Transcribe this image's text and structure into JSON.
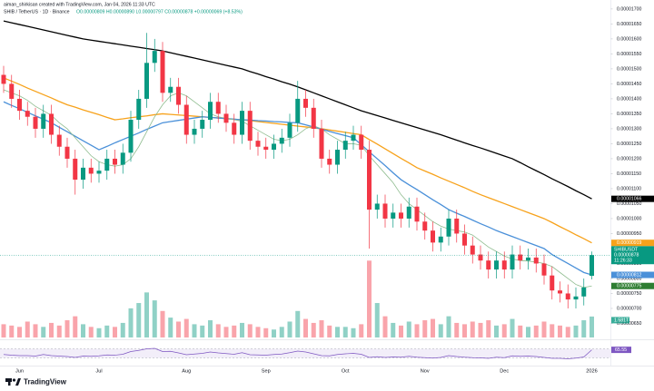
{
  "credit": "aiman_shirkisan created with TradingView.com, Jan 04, 2026 11:33 UTC",
  "footer": "TradingView",
  "chart_data": {
    "type": "candlestick",
    "title": "SHIB / TetherUS · 1D · Binance",
    "ohlc_legend": "O0.00000809 H0.00000890 L0.00000797 C0.00000878 +0.00000069 (+8.53%)",
    "categories": [
      null,
      null,
      "Jun",
      null,
      null,
      null,
      null,
      null,
      null,
      null,
      null,
      null,
      "Jul",
      null,
      null,
      null,
      null,
      null,
      null,
      null,
      null,
      null,
      null,
      "Aug",
      null,
      null,
      null,
      null,
      null,
      null,
      null,
      null,
      null,
      "Sep",
      null,
      null,
      null,
      null,
      null,
      null,
      null,
      null,
      null,
      "Oct",
      null,
      null,
      null,
      null,
      null,
      null,
      null,
      null,
      null,
      "Nov",
      null,
      null,
      null,
      null,
      null,
      null,
      null,
      null,
      null,
      "Dec",
      null,
      null,
      null,
      null,
      null,
      null,
      null,
      null,
      null,
      null,
      "2026"
    ],
    "open": [
      1.48e-05,
      1.45e-05,
      1.4e-05,
      1.36e-05,
      1.34e-05,
      1.3e-05,
      1.35e-05,
      1.28e-05,
      1.24e-05,
      1.2e-05,
      1.13e-05,
      1.17e-05,
      1.15e-05,
      1.16e-05,
      1.2e-05,
      1.18e-05,
      1.22e-05,
      1.33e-05,
      1.4e-05,
      1.52e-05,
      1.56e-05,
      1.42e-05,
      1.44e-05,
      1.38e-05,
      1.28e-05,
      1.3e-05,
      1.33e-05,
      1.39e-05,
      1.35e-05,
      1.32e-05,
      1.28e-05,
      1.36e-05,
      1.26e-05,
      1.24e-05,
      1.23e-05,
      1.25e-05,
      1.27e-05,
      1.32e-05,
      1.4e-05,
      1.37e-05,
      1.3e-05,
      1.2e-05,
      1.18e-05,
      1.23e-05,
      1.26e-05,
      1.28e-05,
      1.23e-05,
      1.03e-05,
      1.05e-05,
      1e-05,
      1.02e-05,
      1e-05,
      1.04e-05,
      9.9e-06,
      9.6e-06,
      9.2e-06,
      9.4e-06,
      1e-05,
      9.5e-06,
      9.1e-06,
      8.8e-06,
      8.6e-06,
      8.3e-06,
      8.6e-06,
      8.3e-06,
      8.8e-06,
      8.6e-06,
      8.7e-06,
      8.5e-06,
      8.1e-06,
      7.6e-06,
      7.5e-06,
      7.3e-06,
      7.4e-06,
      8.09e-06
    ],
    "high": [
      1.51e-05,
      1.48e-05,
      1.43e-05,
      1.39e-05,
      1.37e-05,
      1.38e-05,
      1.38e-05,
      1.31e-05,
      1.27e-05,
      1.23e-05,
      1.2e-05,
      1.2e-05,
      1.19e-05,
      1.23e-05,
      1.23e-05,
      1.25e-05,
      1.36e-05,
      1.43e-05,
      1.62e-05,
      1.6e-05,
      1.59e-05,
      1.47e-05,
      1.47e-05,
      1.41e-05,
      1.33e-05,
      1.36e-05,
      1.42e-05,
      1.42e-05,
      1.38e-05,
      1.35e-05,
      1.39e-05,
      1.39e-05,
      1.29e-05,
      1.27e-05,
      1.28e-05,
      1.3e-05,
      1.35e-05,
      1.46e-05,
      1.43e-05,
      1.4e-05,
      1.33e-05,
      1.23e-05,
      1.26e-05,
      1.29e-05,
      1.31e-05,
      1.31e-05,
      1.26e-05,
      1.08e-05,
      1.08e-05,
      1.05e-05,
      1.05e-05,
      1.07e-05,
      1.07e-05,
      1.02e-05,
      9.9e-06,
      9.7e-06,
      1.03e-05,
      1.03e-05,
      9.8e-06,
      9.4e-06,
      9.1e-06,
      8.9e-06,
      8.9e-06,
      8.9e-06,
      9.1e-06,
      9.1e-06,
      9e-06,
      9e-06,
      8.8e-06,
      8.4e-06,
      7.9e-06,
      7.8e-06,
      7.7e-06,
      8e-06,
      8.9e-06
    ],
    "low": [
      1.42e-05,
      1.37e-05,
      1.33e-05,
      1.31e-05,
      1.27e-05,
      1.27e-05,
      1.25e-05,
      1.21e-05,
      1.17e-05,
      1.08e-05,
      1.1e-05,
      1.12e-05,
      1.12e-05,
      1.13e-05,
      1.15e-05,
      1.15e-05,
      1.19e-05,
      1.3e-05,
      1.37e-05,
      1.49e-05,
      1.39e-05,
      1.39e-05,
      1.35e-05,
      1.25e-05,
      1.25e-05,
      1.27e-05,
      1.3e-05,
      1.32e-05,
      1.29e-05,
      1.25e-05,
      1.25e-05,
      1.23e-05,
      1.21e-05,
      1.2e-05,
      1.2e-05,
      1.22e-05,
      1.24e-05,
      1.29e-05,
      1.34e-05,
      1.27e-05,
      1.17e-05,
      1.15e-05,
      1.15e-05,
      1.2e-05,
      1.23e-05,
      1.2e-05,
      9e-06,
      1e-05,
      9.7e-06,
      9.7e-06,
      9.7e-06,
      9.7e-06,
      9.6e-06,
      9.3e-06,
      8.9e-06,
      8.9e-06,
      9.1e-06,
      9.2e-06,
      8.8e-06,
      8.5e-06,
      8.3e-06,
      8e-06,
      8e-06,
      8e-06,
      8e-06,
      8.3e-06,
      8.3e-06,
      8.2e-06,
      7.8e-06,
      7.3e-06,
      7.2e-06,
      7e-06,
      7e-06,
      7.1e-06,
      7.97e-06
    ],
    "close": [
      1.45e-05,
      1.4e-05,
      1.36e-05,
      1.34e-05,
      1.3e-05,
      1.35e-05,
      1.28e-05,
      1.24e-05,
      1.2e-05,
      1.13e-05,
      1.17e-05,
      1.15e-05,
      1.16e-05,
      1.2e-05,
      1.18e-05,
      1.22e-05,
      1.33e-05,
      1.4e-05,
      1.52e-05,
      1.56e-05,
      1.42e-05,
      1.44e-05,
      1.38e-05,
      1.28e-05,
      1.3e-05,
      1.33e-05,
      1.39e-05,
      1.35e-05,
      1.32e-05,
      1.28e-05,
      1.36e-05,
      1.26e-05,
      1.24e-05,
      1.23e-05,
      1.25e-05,
      1.27e-05,
      1.32e-05,
      1.4e-05,
      1.37e-05,
      1.3e-05,
      1.2e-05,
      1.18e-05,
      1.23e-05,
      1.26e-05,
      1.28e-05,
      1.23e-05,
      1.03e-05,
      1.05e-05,
      1e-05,
      1.02e-05,
      1e-05,
      1.04e-05,
      9.9e-06,
      9.6e-06,
      9.2e-06,
      9.4e-06,
      1e-05,
      9.5e-06,
      9.1e-06,
      8.8e-06,
      8.6e-06,
      8.3e-06,
      8.6e-06,
      8.3e-06,
      8.8e-06,
      8.6e-06,
      8.7e-06,
      8.5e-06,
      8.1e-06,
      7.6e-06,
      7.5e-06,
      7.3e-06,
      7.4e-06,
      7.7e-06,
      8.78e-06
    ],
    "up_color": "#089981",
    "down_color": "#f23645",
    "ylim": [
      6.03e-06,
      1.73e-05
    ],
    "yticks": [
      {
        "value": 1.7e-05,
        "label": "0.00001700"
      },
      {
        "value": 1.65e-05,
        "label": "0.00001650"
      },
      {
        "value": 1.6e-05,
        "label": "0.00001600"
      },
      {
        "value": 1.55e-05,
        "label": "0.00001550"
      },
      {
        "value": 1.5e-05,
        "label": "0.00001500"
      },
      {
        "value": 1.45e-05,
        "label": "0.00001450"
      },
      {
        "value": 1.4e-05,
        "label": "0.00001400"
      },
      {
        "value": 1.35e-05,
        "label": "0.00001350"
      },
      {
        "value": 1.3e-05,
        "label": "0.00001300"
      },
      {
        "value": 1.25e-05,
        "label": "0.00001250"
      },
      {
        "value": 1.2e-05,
        "label": "0.00001200"
      },
      {
        "value": 1.15e-05,
        "label": "0.00001150"
      },
      {
        "value": 1.1e-05,
        "label": "0.00001100"
      },
      {
        "value": 1.05e-05,
        "label": "0.00001050"
      },
      {
        "value": 1e-05,
        "label": "0.00001000"
      },
      {
        "value": 9.5e-06,
        "label": "0.00000950"
      },
      {
        "value": 9e-06,
        "label": "0.00000900"
      },
      {
        "value": 8.5e-06,
        "label": "0.00000850"
      },
      {
        "value": 8e-06,
        "label": "0.00000800"
      },
      {
        "value": 7.5e-06,
        "label": "0.00000750"
      },
      {
        "value": 7e-06,
        "label": "0.00000700"
      },
      {
        "value": 6.5e-06,
        "label": "0.00000650"
      }
    ],
    "grid": false,
    "series": [
      {
        "color": "#000000",
        "width": 1.3,
        "values": [
          1.66e-05,
          1.654e-05,
          1.648e-05,
          1.642e-05,
          1.636e-05,
          1.63e-05,
          1.624e-05,
          1.618e-05,
          1.612e-05,
          1.606e-05,
          1.6e-05,
          1.596e-05,
          1.592e-05,
          1.588e-05,
          1.584e-05,
          1.58e-05,
          1.576e-05,
          1.572e-05,
          1.568e-05,
          1.564e-05,
          1.56e-05,
          1.554e-05,
          1.548e-05,
          1.542e-05,
          1.536e-05,
          1.53e-05,
          1.524e-05,
          1.518e-05,
          1.512e-05,
          1.506e-05,
          1.5e-05,
          1.491e-05,
          1.483e-05,
          1.474e-05,
          1.466e-05,
          1.457e-05,
          1.449e-05,
          1.44e-05,
          1.43e-05,
          1.42e-05,
          1.41e-05,
          1.4e-05,
          1.39e-05,
          1.38e-05,
          1.37e-05,
          1.36e-05,
          1.352e-05,
          1.344e-05,
          1.336e-05,
          1.328e-05,
          1.32e-05,
          1.312e-05,
          1.304e-05,
          1.296e-05,
          1.288e-05,
          1.28e-05,
          1.271e-05,
          1.262e-05,
          1.253e-05,
          1.244e-05,
          1.236e-05,
          1.227e-05,
          1.218e-05,
          1.209e-05,
          1.2e-05,
          1.187e-05,
          1.173e-05,
          1.16e-05,
          1.147e-05,
          1.133e-05,
          1.12e-05,
          1.107e-05,
          1.093e-05,
          1.08e-05,
          1.066e-05
        ]
      },
      {
        "color": "#f7a21b",
        "width": 1.3,
        "values": [
          1.47e-05,
          1.459e-05,
          1.448e-05,
          1.436e-05,
          1.425e-05,
          1.414e-05,
          1.403e-05,
          1.391e-05,
          1.38e-05,
          1.372e-05,
          1.363e-05,
          1.355e-05,
          1.347e-05,
          1.338e-05,
          1.33e-05,
          1.333e-05,
          1.337e-05,
          1.34e-05,
          1.343e-05,
          1.347e-05,
          1.35e-05,
          1.348e-05,
          1.346e-05,
          1.344e-05,
          1.342e-05,
          1.34e-05,
          1.338e-05,
          1.336e-05,
          1.334e-05,
          1.332e-05,
          1.33e-05,
          1.327e-05,
          1.324e-05,
          1.321e-05,
          1.318e-05,
          1.315e-05,
          1.312e-05,
          1.309e-05,
          1.306e-05,
          1.303e-05,
          1.3e-05,
          1.296e-05,
          1.292e-05,
          1.288e-05,
          1.284e-05,
          1.28e-05,
          1.264e-05,
          1.249e-05,
          1.233e-05,
          1.217e-05,
          1.201e-05,
          1.186e-05,
          1.17e-05,
          1.159e-05,
          1.148e-05,
          1.136e-05,
          1.125e-05,
          1.114e-05,
          1.103e-05,
          1.091e-05,
          1.08e-05,
          1.07e-05,
          1.06e-05,
          1.05e-05,
          1.04e-05,
          1.03e-05,
          1.02e-05,
          1.01e-05,
          1e-05,
          9.87e-06,
          9.73e-06,
          9.6e-06,
          9.46e-06,
          9.33e-06,
          9.19e-06
        ]
      },
      {
        "color": "#4a90d9",
        "width": 1.3,
        "values": [
          1.39e-05,
          1.378e-05,
          1.367e-05,
          1.355e-05,
          1.343e-05,
          1.332e-05,
          1.32e-05,
          1.305e-05,
          1.29e-05,
          1.275e-05,
          1.26e-05,
          1.245e-05,
          1.23e-05,
          1.241e-05,
          1.253e-05,
          1.264e-05,
          1.275e-05,
          1.286e-05,
          1.298e-05,
          1.309e-05,
          1.32e-05,
          1.324e-05,
          1.328e-05,
          1.332e-05,
          1.336e-05,
          1.34e-05,
          1.338e-05,
          1.336e-05,
          1.334e-05,
          1.332e-05,
          1.33e-05,
          1.329e-05,
          1.327e-05,
          1.326e-05,
          1.324e-05,
          1.323e-05,
          1.321e-05,
          1.32e-05,
          1.313e-05,
          1.306e-05,
          1.299e-05,
          1.291e-05,
          1.284e-05,
          1.277e-05,
          1.27e-05,
          1.247e-05,
          1.223e-05,
          1.2e-05,
          1.177e-05,
          1.153e-05,
          1.13e-05,
          1.113e-05,
          1.097e-05,
          1.08e-05,
          1.063e-05,
          1.047e-05,
          1.03e-05,
          1.018e-05,
          1.007e-05,
          9.95e-06,
          9.83e-06,
          9.72e-06,
          9.6e-06,
          9.5e-06,
          9.4e-06,
          9.3e-06,
          9.2e-06,
          9.1e-06,
          9e-06,
          8.8e-06,
          8.65e-06,
          8.5e-06,
          8.35e-06,
          8.2e-06,
          8.12e-06
        ]
      },
      {
        "color": "#8fbc8f",
        "width": 0.8,
        "values": [
          1.43e-05,
          1.42e-05,
          1.41e-05,
          1.395e-05,
          1.375e-05,
          1.36e-05,
          1.345e-05,
          1.32e-05,
          1.3e-05,
          1.27e-05,
          1.24e-05,
          1.21e-05,
          1.19e-05,
          1.18e-05,
          1.175e-05,
          1.18e-05,
          1.2e-05,
          1.24e-05,
          1.29e-05,
          1.34e-05,
          1.38e-05,
          1.41e-05,
          1.42e-05,
          1.41e-05,
          1.39e-05,
          1.37e-05,
          1.35e-05,
          1.34e-05,
          1.335e-05,
          1.33e-05,
          1.325e-05,
          1.31e-05,
          1.295e-05,
          1.28e-05,
          1.265e-05,
          1.26e-05,
          1.265e-05,
          1.28e-05,
          1.3e-05,
          1.31e-05,
          1.3e-05,
          1.28e-05,
          1.265e-05,
          1.25e-05,
          1.25e-05,
          1.245e-05,
          1.21e-05,
          1.18e-05,
          1.15e-05,
          1.12e-05,
          1.08e-05,
          1.05e-05,
          1.03e-05,
          1.01e-05,
          9.9e-06,
          9.75e-06,
          9.65e-06,
          9.6e-06,
          9.55e-06,
          9.45e-06,
          9.25e-06,
          9.05e-06,
          8.9e-06,
          8.75e-06,
          8.65e-06,
          8.6e-06,
          8.58e-06,
          8.55e-06,
          8.5e-06,
          8.4e-06,
          8.2e-06,
          8e-06,
          7.8e-06,
          7.7e-06,
          7.75e-06
        ]
      }
    ],
    "price_labels": [
      {
        "value": 1.066e-05,
        "label": "0.00001066",
        "color": "#000000"
      },
      {
        "value": 9.19e-06,
        "label": "0.00000919",
        "color": "#f7a21b"
      },
      {
        "value": 8.12e-06,
        "label": "0.00000812",
        "color": "#4a90d9"
      },
      {
        "value": 7.75e-06,
        "label": "0.00000775",
        "color": "#2e7d32"
      }
    ],
    "current": {
      "symbol": "SHIBUSDT",
      "value": 8.78e-06,
      "label": "0.00000878",
      "countdown": "11:26:33",
      "color": "#089981"
    },
    "volume": {
      "values": [
        1.0,
        0.9,
        0.8,
        1.2,
        1.0,
        0.8,
        1.1,
        0.9,
        1.3,
        1.6,
        1.0,
        0.8,
        0.7,
        0.9,
        0.8,
        1.1,
        2.2,
        2.6,
        3.4,
        2.8,
        2.0,
        1.5,
        1.2,
        1.4,
        1.0,
        0.9,
        1.3,
        1.0,
        0.8,
        0.9,
        1.1,
        1.0,
        0.8,
        0.7,
        0.6,
        0.8,
        1.2,
        2.0,
        1.4,
        1.1,
        1.3,
        0.9,
        0.8,
        0.8,
        0.7,
        1.0,
        5.8,
        2.6,
        1.6,
        1.1,
        0.9,
        1.2,
        1.0,
        1.3,
        1.4,
        1.0,
        1.6,
        1.1,
        1.0,
        1.2,
        1.1,
        1.3,
        0.9,
        1.0,
        1.4,
        0.9,
        0.8,
        0.9,
        1.2,
        1.0,
        0.9,
        0.8,
        0.9,
        1.3,
        1.581
      ],
      "ylim": [
        0,
        6.3
      ],
      "last_label": "1.581T"
    },
    "rsi": {
      "values": [
        45,
        42,
        40,
        40,
        38,
        45,
        40,
        38,
        36,
        32,
        38,
        37,
        39,
        43,
        42,
        46,
        58,
        63,
        70,
        72,
        58,
        59,
        52,
        44,
        47,
        50,
        56,
        52,
        49,
        46,
        53,
        44,
        43,
        42,
        45,
        47,
        53,
        60,
        56,
        48,
        40,
        39,
        45,
        48,
        50,
        46,
        32,
        35,
        32,
        34,
        33,
        37,
        33,
        31,
        29,
        32,
        40,
        36,
        33,
        31,
        30,
        28,
        33,
        31,
        39,
        37,
        38,
        36,
        32,
        28,
        28,
        26,
        29,
        34,
        65.55
      ],
      "ylim": [
        0,
        100
      ],
      "band": [
        30,
        70
      ],
      "color": "#7e57c2",
      "last_label": "65.55"
    }
  }
}
